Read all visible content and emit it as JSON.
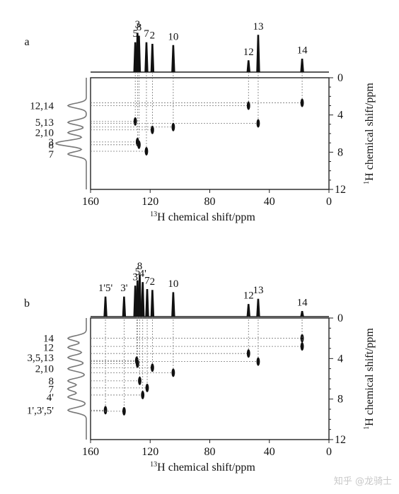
{
  "chart_data": [
    {
      "type": "2d-nmr",
      "panel_label": "a",
      "xlabel_sup": "13",
      "xlabel_text": "H chemical shift/ppm",
      "ylabel_sup": "1",
      "ylabel_text": "H chemical shift/ppm",
      "xlim": [
        160,
        0
      ],
      "ylim": [
        0,
        12
      ],
      "x_ticks": [
        "160",
        "120",
        "80",
        "40",
        "0"
      ],
      "y_ticks": [
        "0",
        "4",
        "8",
        "12"
      ],
      "top_peaks": [
        {
          "label": "5",
          "x": 130,
          "h": 0.72
        },
        {
          "label": "3",
          "x": 128.5,
          "h": 0.95
        },
        {
          "label": "8",
          "x": 127.5,
          "h": 0.88
        },
        {
          "label": "7",
          "x": 122.5,
          "h": 0.72
        },
        {
          "label": "2",
          "x": 118.5,
          "h": 0.68
        },
        {
          "label": "10",
          "x": 104.5,
          "h": 0.65
        },
        {
          "label": "12",
          "x": 54,
          "h": 0.28
        },
        {
          "label": "13",
          "x": 47.5,
          "h": 0.9
        },
        {
          "label": "14",
          "x": 18,
          "h": 0.32
        }
      ],
      "side_labels": [
        {
          "text": "12,14",
          "y": 3.0
        },
        {
          "text": "5,13",
          "y": 4.8
        },
        {
          "text": "2,10",
          "y": 5.9
        },
        {
          "text": "3",
          "y": 6.9
        },
        {
          "text": "8",
          "y": 7.2
        },
        {
          "text": "7",
          "y": 8.2
        }
      ],
      "cross_peaks": [
        {
          "x": 54,
          "y": 3.0
        },
        {
          "x": 18,
          "y": 2.7
        },
        {
          "x": 130,
          "y": 4.7
        },
        {
          "x": 47.5,
          "y": 4.9
        },
        {
          "x": 118.5,
          "y": 5.6
        },
        {
          "x": 104.5,
          "y": 5.3
        },
        {
          "x": 128.5,
          "y": 6.9
        },
        {
          "x": 127.5,
          "y": 7.2
        },
        {
          "x": 122.5,
          "y": 7.9
        }
      ]
    },
    {
      "type": "2d-nmr",
      "panel_label": "b",
      "xlabel_sup": "13",
      "xlabel_text": "H chemical shift/ppm",
      "ylabel_sup": "1",
      "ylabel_text": "H chemical shift/ppm",
      "xlim": [
        160,
        0
      ],
      "ylim": [
        0,
        12
      ],
      "x_ticks": [
        "160",
        "120",
        "80",
        "40",
        "0"
      ],
      "y_ticks": [
        "0",
        "4",
        "8",
        "12"
      ],
      "top_peaks": [
        {
          "label": "1'5'",
          "x": 150,
          "h": 0.45
        },
        {
          "label": "3'",
          "x": 137.5,
          "h": 0.45
        },
        {
          "label": "3",
          "x": 130,
          "h": 0.7
        },
        {
          "label": "5",
          "x": 128.5,
          "h": 0.82
        },
        {
          "label": "8",
          "x": 127,
          "h": 0.95
        },
        {
          "label": "4'",
          "x": 125,
          "h": 0.78
        },
        {
          "label": "7",
          "x": 122,
          "h": 0.62
        },
        {
          "label": "2",
          "x": 118.5,
          "h": 0.6
        },
        {
          "label": "10",
          "x": 104.5,
          "h": 0.55
        },
        {
          "label": "12",
          "x": 54,
          "h": 0.28
        },
        {
          "label": "13",
          "x": 47.5,
          "h": 0.4
        },
        {
          "label": "14",
          "x": 18,
          "h": 0.12
        }
      ],
      "side_labels": [
        {
          "text": "14",
          "y": 2.0
        },
        {
          "text": "12",
          "y": 2.9
        },
        {
          "text": "3,5,13",
          "y": 3.9
        },
        {
          "text": "2,10",
          "y": 5.0
        },
        {
          "text": "8",
          "y": 6.2
        },
        {
          "text": "7",
          "y": 7.0
        },
        {
          "text": "4'",
          "y": 7.8
        },
        {
          "text": "1',3',5'",
          "y": 9.1
        }
      ],
      "cross_peaks": [
        {
          "x": 18,
          "y": 2.0
        },
        {
          "x": 18,
          "y": 2.8
        },
        {
          "x": 54,
          "y": 3.5
        },
        {
          "x": 47.5,
          "y": 4.3
        },
        {
          "x": 129,
          "y": 4.2
        },
        {
          "x": 128.5,
          "y": 4.5
        },
        {
          "x": 118.5,
          "y": 4.9
        },
        {
          "x": 104.5,
          "y": 5.4
        },
        {
          "x": 127,
          "y": 6.2
        },
        {
          "x": 122,
          "y": 6.9
        },
        {
          "x": 125,
          "y": 7.6
        },
        {
          "x": 150,
          "y": 9.1
        },
        {
          "x": 137.5,
          "y": 9.2
        }
      ]
    }
  ],
  "watermark": "知乎 @龙骑士"
}
